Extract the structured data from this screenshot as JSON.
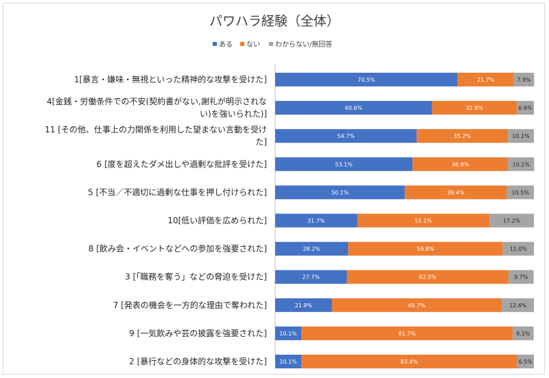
{
  "chart_data": {
    "type": "bar",
    "orientation": "horizontal",
    "stacked": true,
    "title": "パワハラ経験（全体）",
    "xlabel": "",
    "ylabel": "",
    "xlim": [
      0,
      100
    ],
    "legend_position": "top",
    "categories": [
      [
        "1[暴言・嫌味・無視といった精神的な攻撃を受けた]"
      ],
      [
        "4[金銭・労働条件での不安(契約書がない,謝礼が明示されな",
        "い)を強いられた)]"
      ],
      [
        "11 [その他、仕事上の力関係を利用した望まない言動を受け",
        "た]"
      ],
      [
        "6 [度を超えたダメ出しや過剰な批評を受けた]"
      ],
      [
        "5 [不当／不適切に過剰な仕事を押し付けられた]"
      ],
      [
        "10[低い評価を広められた]"
      ],
      [
        "8 [飲み会・イベントなどへの参加を強要された]"
      ],
      [
        "3 [「職務を奪う」などの脅迫を受けた]"
      ],
      [
        "7 [発表の機会を一方的な理由で奪われた]"
      ],
      [
        "9 [一気飲みや芸の披露を強要された]"
      ],
      [
        "2 [暴行などの身体的な攻撃を受けた]"
      ]
    ],
    "series": [
      {
        "name": "ある",
        "color": "#4472c4",
        "label_color": "#ffffff",
        "values": [
          70.5,
          60.6,
          54.7,
          53.1,
          50.1,
          31.7,
          28.2,
          27.7,
          21.9,
          10.1,
          10.1
        ],
        "labels": [
          "70.5%",
          "60.6%",
          "54.7%",
          "53.1%",
          "50.1%",
          "31.7%",
          "28.2%",
          "27.7%",
          "21.9%",
          "10.1%",
          "10.1%"
        ]
      },
      {
        "name": "ない",
        "color": "#ed7d31",
        "label_color": "#ffffff",
        "values": [
          21.7,
          32.8,
          35.2,
          36.9,
          39.4,
          51.1,
          59.8,
          62.5,
          65.7,
          81.7,
          83.4
        ],
        "labels": [
          "21.7%",
          "32.8%",
          "35.2%",
          "36.9%",
          "39.4%",
          "51.1%",
          "59.8%",
          "62.5%",
          "65.7%",
          "81.7%",
          "83.4%"
        ]
      },
      {
        "name": "わからない/無回答",
        "color": "#a5a5a5",
        "label_color": "#262626",
        "values": [
          7.9,
          6.6,
          10.1,
          10.1,
          10.5,
          17.2,
          12.0,
          9.7,
          12.4,
          8.1,
          6.5
        ],
        "labels": [
          "7.9%",
          "6.6%",
          "10.1%",
          "10.1%",
          "10.5%",
          "17.2%",
          "12.0%",
          "9.7%",
          "12.4%",
          "8.1%",
          "6.5%"
        ]
      }
    ]
  }
}
